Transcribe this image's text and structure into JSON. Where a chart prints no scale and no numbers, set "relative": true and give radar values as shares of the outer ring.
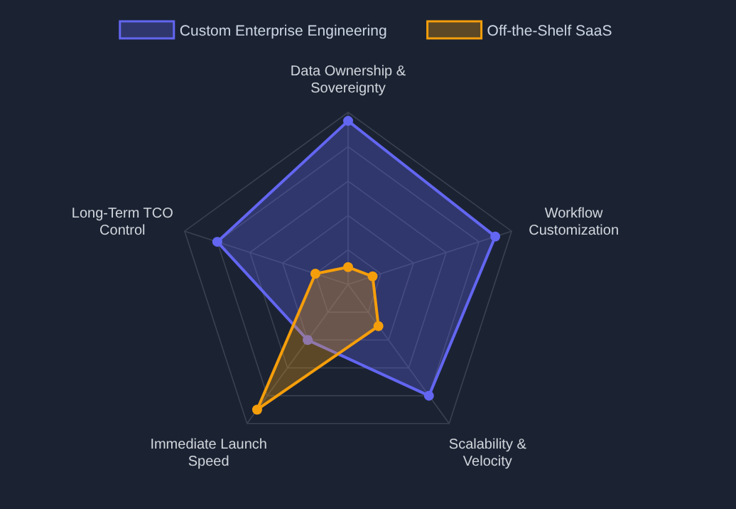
{
  "chart_data": {
    "type": "radar",
    "relative": true,
    "legend": "top",
    "grid": true,
    "marker": "circle",
    "categories": [
      "Data Ownership & Sovereignty",
      "Workflow Customization",
      "Scalability & Velocity",
      "Immediate Launch Speed",
      "Long-Term TCO Control"
    ],
    "series": [
      {
        "name": "Custom Enterprise Engineering",
        "color": "#6366f1",
        "values": [
          0.95,
          0.9,
          0.8,
          0.4,
          0.8
        ]
      },
      {
        "name": "Off-the-Shelf SaaS",
        "color": "#f59e0b",
        "values": [
          0.1,
          0.15,
          0.3,
          0.9,
          0.2
        ]
      }
    ]
  }
}
